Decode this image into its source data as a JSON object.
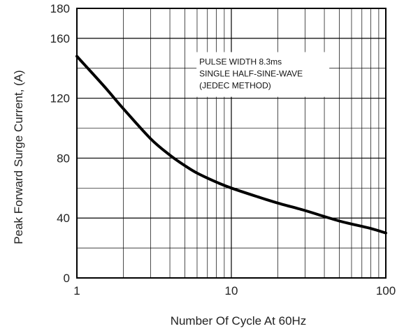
{
  "chart_data": {
    "type": "line",
    "xlabel": "Number Of Cycle At 60Hz",
    "ylabel": "Peak Forward Surge Current, (A)",
    "x_scale": "log",
    "xlim": [
      1,
      100
    ],
    "ylim": [
      0,
      180
    ],
    "x_ticks": [
      "1",
      "10",
      "100"
    ],
    "y_ticks": [
      "0",
      "40",
      "80",
      "120",
      "160",
      "180"
    ],
    "grid": true,
    "annotation": [
      "PULSE WIDTH 8.3ms",
      "SINGLE HALF-SINE-WAVE",
      "(JEDEC METHOD)"
    ],
    "colors": {
      "line": "#000000",
      "grid": "#000000",
      "background": "#ffffff"
    },
    "series": [
      {
        "x": [
          1,
          1.5,
          2,
          3,
          4,
          5,
          6,
          8,
          10,
          15,
          20,
          30,
          40,
          50,
          60,
          80,
          100
        ],
        "values": [
          148,
          128,
          113,
          93,
          82,
          75,
          70,
          64,
          60,
          54,
          50,
          45,
          41,
          38,
          36,
          33,
          30
        ]
      }
    ]
  }
}
